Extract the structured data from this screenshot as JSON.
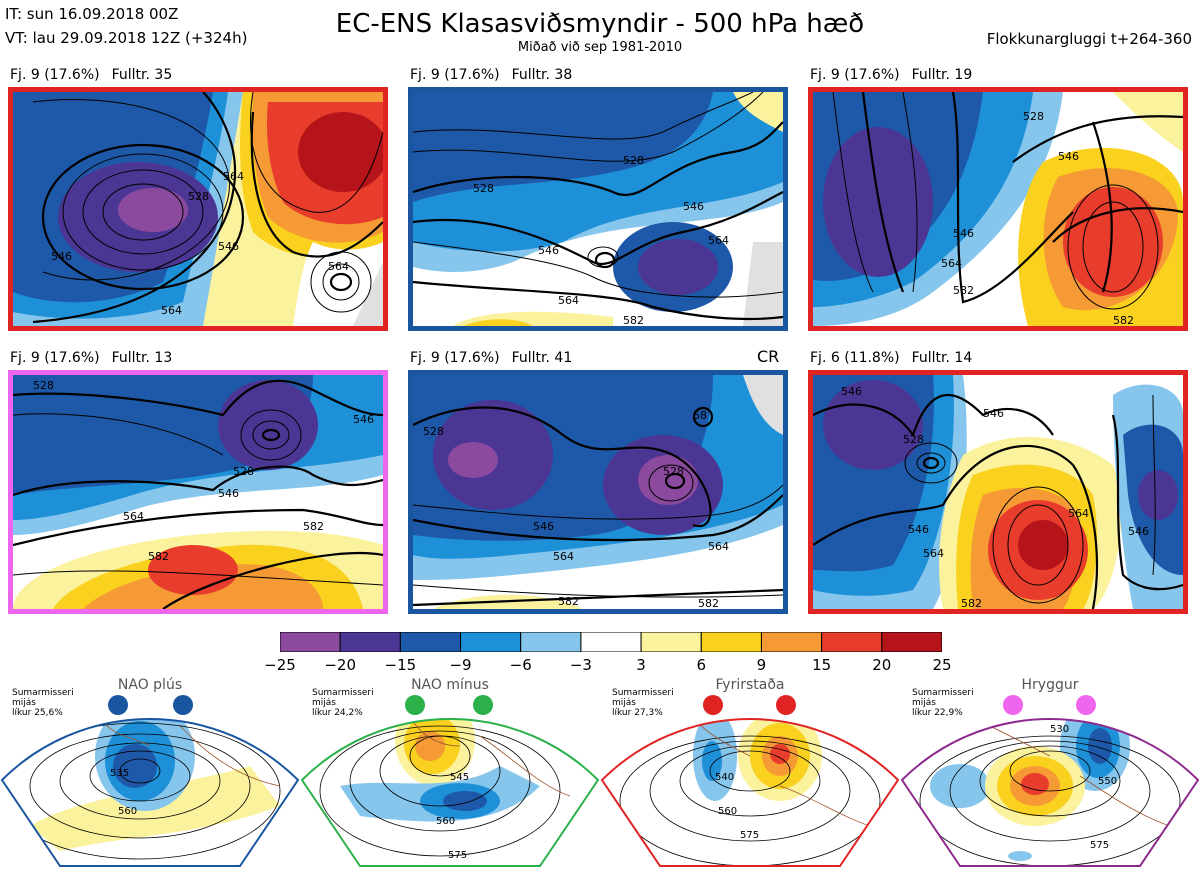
{
  "header": {
    "it_line": "IT: sun 16.09.2018 00Z",
    "vt_line": "VT: lau 29.09.2018 12Z  (+324h)",
    "title": "EC-ENS Klasasviðsmyndir - 500 hPa hæð",
    "subtitle": "Miðað við sep 1981-2010",
    "window": "Flokkunargluggi t+264-360"
  },
  "colors": {
    "nao_plus": "#1a56a0",
    "nao_minus": "#2cb04a",
    "blocking": "#e02424",
    "ridge": "#ee66ee",
    "ridge_border": "#8e2a8e"
  },
  "panels": [
    {
      "fj": "Fj. 9 (17.6%)",
      "fulltr": "Fulltr. 35",
      "regime": "blocking",
      "contours": [
        "546",
        "528",
        "546",
        "564",
        "564",
        "564"
      ]
    },
    {
      "fj": "Fj. 9 (17.6%)",
      "fulltr": "Fulltr. 38",
      "regime": "nao_plus",
      "contours": [
        "528",
        "528",
        "546",
        "546",
        "564",
        "564",
        "582"
      ]
    },
    {
      "fj": "Fj. 9 (17.6%)",
      "fulltr": "Fulltr. 19",
      "regime": "blocking",
      "contours": [
        "528",
        "546",
        "546",
        "564",
        "582",
        "582"
      ]
    },
    {
      "fj": "Fj. 9 (17.6%)",
      "fulltr": "Fulltr. 13",
      "regime": "ridge",
      "contours": [
        "528",
        "546",
        "528",
        "546",
        "564",
        "582",
        "582"
      ]
    },
    {
      "fj": "Fj. 9 (17.6%)",
      "fulltr": "Fulltr. 41",
      "regime": "nao_plus",
      "contours": [
        "528",
        "528",
        "58",
        "546",
        "564",
        "564",
        "582",
        "582"
      ]
    },
    {
      "fj": "Fj. 6 (11.8%)",
      "fulltr": "Fulltr. 14",
      "regime": "blocking",
      "contours": [
        "546",
        "546",
        "528",
        "546",
        "564",
        "564",
        "546",
        "582"
      ]
    }
  ],
  "cr_label": "CR",
  "colorbar": {
    "ticks": [
      "−25",
      "−20",
      "−15",
      "−9",
      "−6",
      "−3",
      "3",
      "6",
      "9",
      "15",
      "20",
      "25"
    ],
    "colors": [
      "#8c4a9f",
      "#4b3694",
      "#1e58a8",
      "#1e90d8",
      "#86c6ec",
      "#ffffff",
      "#fbf29e",
      "#f9d11e",
      "#f59a35",
      "#e83c2c",
      "#b5141a"
    ]
  },
  "regimes": [
    {
      "key": "nao_plus",
      "name": "NAO plús",
      "season": "Sumarmisseri",
      "type": "mijás",
      "prob": "líkur 25,6%",
      "labels": [
        "535",
        "560"
      ]
    },
    {
      "key": "nao_minus",
      "name": "NAO mínus",
      "season": "Sumarmisseri",
      "type": "mijás",
      "prob": "líkur 24,2%",
      "labels": [
        "545",
        "560",
        "575"
      ]
    },
    {
      "key": "blocking",
      "name": "Fyrirstaða",
      "season": "Sumarmisseri",
      "type": "mijás",
      "prob": "líkur 27,3%",
      "labels": [
        "540",
        "560",
        "575"
      ]
    },
    {
      "key": "ridge",
      "name": "Hryggur",
      "season": "Sumarmisseri",
      "type": "mijás",
      "prob": "líkur 22,9%",
      "labels": [
        "530",
        "550",
        "575"
      ]
    }
  ]
}
